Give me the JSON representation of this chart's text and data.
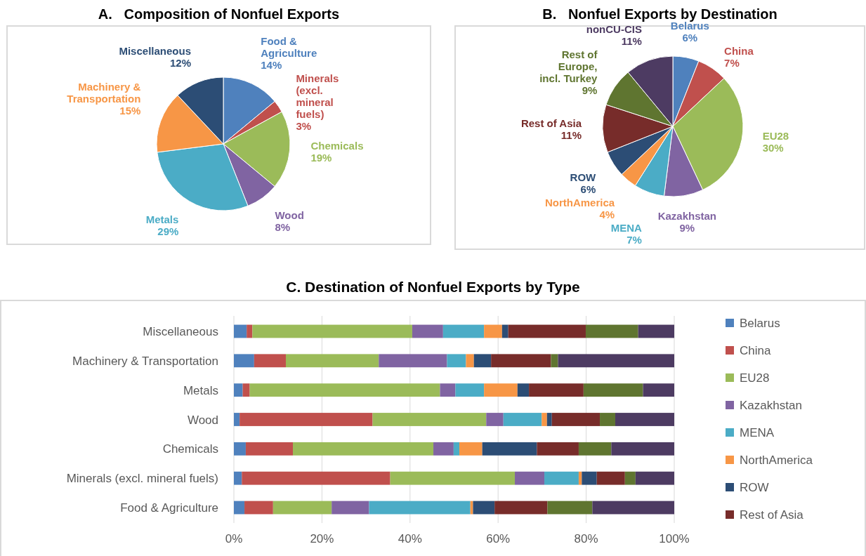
{
  "chart_data": [
    {
      "type": "pie",
      "title": "A.   Composition of Nonfuel Exports",
      "categories": [
        "Food & Agriculture",
        "Minerals (excl. mineral fuels)",
        "Chemicals",
        "Wood",
        "Metals",
        "Machinery & Transportation",
        "Miscellaneous"
      ],
      "values": [
        14,
        3,
        19,
        8,
        29,
        15,
        12
      ],
      "colors": [
        "#4f81bd",
        "#c0504d",
        "#9bbb59",
        "#8064a2",
        "#4bacc6",
        "#f79646",
        "#2c4d75"
      ],
      "value_labels": [
        "14%",
        "3%",
        "19%",
        "8%",
        "29%",
        "15%",
        "12%"
      ]
    },
    {
      "type": "pie",
      "title": "B.   Nonfuel Exports by Destination",
      "categories": [
        "Belarus",
        "China",
        "EU28",
        "Kazakhstan",
        "MENA",
        "NorthAmerica",
        "ROW",
        "Rest of Asia",
        "Rest of Europe, incl. Turkey",
        "nonCU-CIS"
      ],
      "values": [
        6,
        7,
        30,
        9,
        7,
        4,
        6,
        11,
        9,
        11
      ],
      "colors": [
        "#4f81bd",
        "#c0504d",
        "#9bbb59",
        "#8064a2",
        "#4bacc6",
        "#f79646",
        "#2c4d75",
        "#772c2a",
        "#5f7530",
        "#4d3b62"
      ],
      "value_labels": [
        "6%",
        "7%",
        "30%",
        "9%",
        "7%",
        "4%",
        "6%",
        "11%",
        "9%",
        "11%"
      ]
    },
    {
      "type": "bar",
      "title": "C. Destination of Nonfuel Exports by Type",
      "orientation": "horizontal",
      "stacked": true,
      "grid": "x",
      "legend": "right",
      "xlim": [
        0,
        100
      ],
      "xticks": [
        {
          "value": 0,
          "label": "0%"
        },
        {
          "value": 20,
          "label": "20%"
        },
        {
          "value": 40,
          "label": "40%"
        },
        {
          "value": 60,
          "label": "60%"
        },
        {
          "value": 80,
          "label": "80%"
        },
        {
          "value": 100,
          "label": "100%"
        }
      ],
      "categories": [
        "Miscellaneous",
        "Machinery & Transportation",
        "Metals",
        "Wood",
        "Chemicals",
        "Minerals (excl. mineral fuels)",
        "Food & Agriculture"
      ],
      "series": [
        {
          "name": "Belarus",
          "color": "#4f81bd",
          "values": [
            2.9,
            4.6,
            2.0,
            1.3,
            2.7,
            1.8,
            2.4
          ]
        },
        {
          "name": "China",
          "color": "#c0504d",
          "values": [
            1.3,
            7.2,
            1.6,
            30.2,
            10.7,
            33.7,
            6.5
          ]
        },
        {
          "name": "EU28",
          "color": "#9bbb59",
          "values": [
            36.3,
            21.1,
            43.2,
            25.8,
            31.9,
            28.3,
            13.3
          ]
        },
        {
          "name": "Kazakhstan",
          "color": "#8064a2",
          "values": [
            7.0,
            15.5,
            3.5,
            3.9,
            4.6,
            6.7,
            8.5
          ]
        },
        {
          "name": "MENA",
          "color": "#4bacc6",
          "values": [
            9.3,
            4.3,
            6.5,
            8.7,
            1.3,
            7.8,
            23.0
          ]
        },
        {
          "name": "NorthAmerica",
          "color": "#f79646",
          "values": [
            4.1,
            1.8,
            7.6,
            1.2,
            5.2,
            0.7,
            0.6
          ]
        },
        {
          "name": "ROW",
          "color": "#2c4d75",
          "values": [
            1.4,
            3.9,
            2.6,
            1.1,
            12.4,
            3.4,
            4.9
          ]
        },
        {
          "name": "Rest of Asia",
          "color": "#772c2a",
          "values": [
            17.6,
            13.6,
            12.4,
            10.9,
            9.5,
            6.4,
            12.0
          ]
        },
        {
          "color": "#5f7530",
          "values": [
            11.9,
            1.6,
            13.5,
            3.5,
            7.4,
            2.4,
            10.2
          ]
        },
        {
          "color": "#4d3b62",
          "values": [
            8.2,
            26.4,
            7.1,
            13.4,
            14.3,
            8.8,
            18.6
          ]
        }
      ]
    }
  ]
}
